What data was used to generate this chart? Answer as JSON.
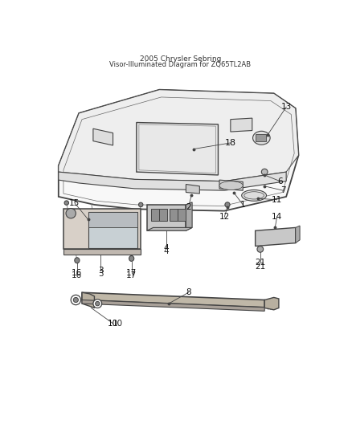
{
  "title": "2005 Chrysler Sebring\nVisor-Illuminated Diagram for ZQ65TL2AB",
  "bg_color": "#ffffff",
  "lc": "#444444",
  "figsize": [
    4.38,
    5.33
  ],
  "dpi": 100
}
